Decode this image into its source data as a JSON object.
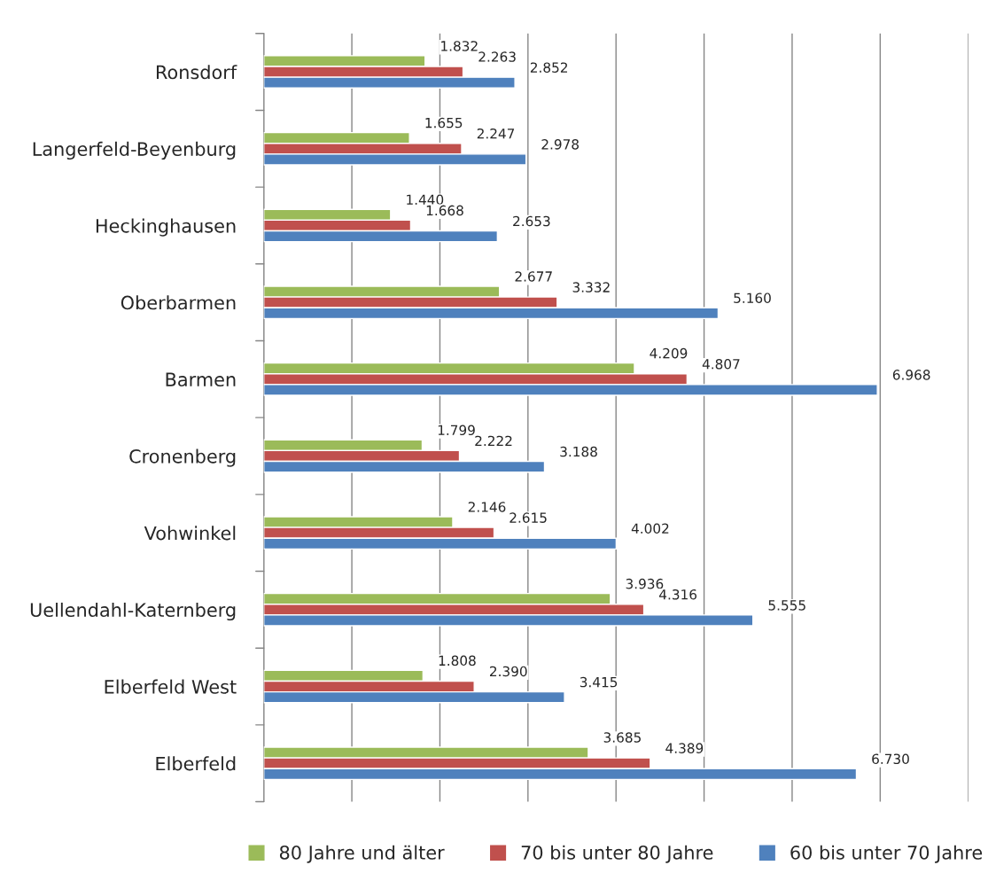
{
  "chart_data": {
    "type": "bar",
    "orientation": "horizontal",
    "categories": [
      "Ronsdorf",
      "Langerfeld-Beyenburg",
      "Heckinghausen",
      "Oberbarmen",
      "Barmen",
      "Cronenberg",
      "Vohwinkel",
      "Uellendahl-Katernberg",
      "Elberfeld West",
      "Elberfeld"
    ],
    "series": [
      {
        "name": "80 Jahre und älter",
        "color": "#9bbb59",
        "values": [
          1832,
          1655,
          1440,
          2677,
          4209,
          1799,
          2146,
          3936,
          1808,
          3685
        ],
        "value_labels": [
          "1.832",
          "1.655",
          "1.440",
          "2.677",
          "4.209",
          "1.799",
          "2.146",
          "3.936",
          "1.808",
          "3.685"
        ]
      },
      {
        "name": "70 bis unter 80 Jahre",
        "color": "#c0504d",
        "values": [
          2263,
          2247,
          1668,
          3332,
          4807,
          2222,
          2615,
          4316,
          2390,
          4389
        ],
        "value_labels": [
          "2.263",
          "2.247",
          "1.668",
          "3.332",
          "4.807",
          "2.222",
          "2.615",
          "4.316",
          "2.390",
          "4.389"
        ]
      },
      {
        "name": "60 bis unter 70 Jahre",
        "color": "#4f81bd",
        "values": [
          2852,
          2978,
          2653,
          5160,
          6968,
          3188,
          4002,
          5555,
          3415,
          6730
        ],
        "value_labels": [
          "2.852",
          "2.978",
          "2.653",
          "5.160",
          "6.968",
          "3.188",
          "4.002",
          "5.555",
          "3.415",
          "6.730"
        ]
      }
    ],
    "xlim": [
      0,
      8000
    ],
    "xticks": [
      {
        "value": 0,
        "label": null
      },
      {
        "value": 1000,
        "label": null
      },
      {
        "value": 2000,
        "label": null
      },
      {
        "value": 3000,
        "label": null
      },
      {
        "value": 4000,
        "label": null
      },
      {
        "value": 5000,
        "label": null
      },
      {
        "value": 6000,
        "label": null
      },
      {
        "value": 7000,
        "label": null
      },
      {
        "value": 8000,
        "label": null
      }
    ],
    "grid": "x",
    "legend": "bottom",
    "tick_labels": "y"
  }
}
